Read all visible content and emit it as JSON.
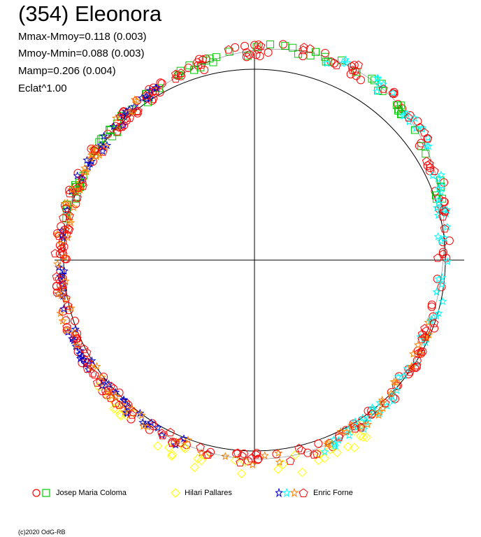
{
  "header": {
    "title": "(354) Eleonora",
    "stats": [
      "Mmax-Mmoy=0.118 (0.003)",
      "Mmoy-Mmin=0.088 (0.003)",
      "Mamp=0.206 (0.004)",
      "Eclat^1.00"
    ]
  },
  "legend": [
    {
      "label": "Josep Maria Coloma",
      "colors": [
        "#ff0000",
        "#00cc00"
      ],
      "shapes": [
        "circle",
        "square"
      ]
    },
    {
      "label": "Hilari Pallares",
      "colors": [
        "#ffff00"
      ],
      "shapes": [
        "diamond"
      ]
    },
    {
      "label": "Enric Forne",
      "colors": [
        "#0000cc",
        "#00ffff",
        "#ff8000",
        "#ff0000"
      ],
      "shapes": [
        "star",
        "star",
        "star",
        "pentagon"
      ]
    }
  ],
  "footer": {
    "copyright": "(c)2020 OdG-RB"
  },
  "chart_data": {
    "type": "scatter",
    "coordinate_system": "polar",
    "title": "(354) Eleonora",
    "reference_circle": true,
    "amplitude": 0.206,
    "series": [
      {
        "name": "Josep Maria Coloma",
        "color": "#ff0000",
        "marker": "circle",
        "phase_range": [
          0.0,
          1.0
        ]
      },
      {
        "name": "Josep Maria Coloma",
        "color": "#00cc00",
        "marker": "square",
        "phase_range": [
          0.78,
          0.2
        ]
      },
      {
        "name": "Hilari Pallares",
        "color": "#ffff00",
        "marker": "diamond",
        "phase_range": [
          0.38,
          0.65
        ]
      },
      {
        "name": "Enric Forne",
        "color": "#0000cc",
        "marker": "star",
        "phase_range": [
          0.55,
          0.92
        ]
      },
      {
        "name": "Enric Forne",
        "color": "#00ffff",
        "marker": "star",
        "phase_range": [
          0.05,
          0.45
        ]
      },
      {
        "name": "Enric Forne",
        "color": "#ff8000",
        "marker": "star",
        "phase_range": [
          0.3,
          0.9
        ]
      },
      {
        "name": "Enric Forne",
        "color": "#ff0000",
        "marker": "pentagon",
        "phase_range": [
          0.0,
          1.0
        ]
      }
    ]
  }
}
